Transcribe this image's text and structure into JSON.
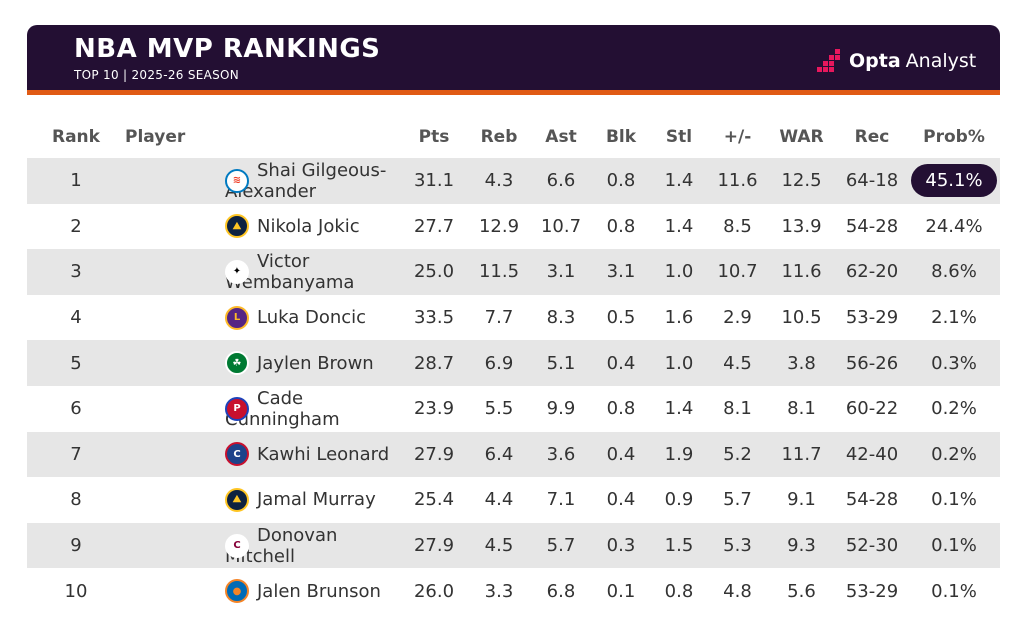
{
  "header": {
    "title": "NBA MVP RANKINGS",
    "subtitle": "TOP 10 | 2025-26 SEASON",
    "brand_bold": "Opta",
    "brand_light": "Analyst"
  },
  "columns": [
    "Rank",
    "Player",
    "Pts",
    "Reb",
    "Ast",
    "Blk",
    "Stl",
    "+/-",
    "WAR",
    "Rec",
    "Prob%"
  ],
  "rows": [
    {
      "rank": "1",
      "player": "Shai Gilgeous-Alexander",
      "team_icon": "thunder-logo-icon",
      "pts": "31.1",
      "reb": "4.3",
      "ast": "6.6",
      "blk": "0.8",
      "stl": "1.4",
      "pm": "11.6",
      "war": "12.5",
      "rec": "64-18",
      "prob": "45.1%"
    },
    {
      "rank": "2",
      "player": "Nikola Jokic",
      "team_icon": "nuggets-logo-icon",
      "pts": "27.7",
      "reb": "12.9",
      "ast": "10.7",
      "blk": "0.8",
      "stl": "1.4",
      "pm": "8.5",
      "war": "13.9",
      "rec": "54-28",
      "prob": "24.4%"
    },
    {
      "rank": "3",
      "player": "Victor Wembanyama",
      "team_icon": "spurs-logo-icon",
      "pts": "25.0",
      "reb": "11.5",
      "ast": "3.1",
      "blk": "3.1",
      "stl": "1.0",
      "pm": "10.7",
      "war": "11.6",
      "rec": "62-20",
      "prob": "8.6%"
    },
    {
      "rank": "4",
      "player": "Luka Doncic",
      "team_icon": "lakers-logo-icon",
      "pts": "33.5",
      "reb": "7.7",
      "ast": "8.3",
      "blk": "0.5",
      "stl": "1.6",
      "pm": "2.9",
      "war": "10.5",
      "rec": "53-29",
      "prob": "2.1%"
    },
    {
      "rank": "5",
      "player": "Jaylen Brown",
      "team_icon": "celtics-logo-icon",
      "pts": "28.7",
      "reb": "6.9",
      "ast": "5.1",
      "blk": "0.4",
      "stl": "1.0",
      "pm": "4.5",
      "war": "3.8",
      "rec": "56-26",
      "prob": "0.3%"
    },
    {
      "rank": "6",
      "player": "Cade Cunningham",
      "team_icon": "pistons-logo-icon",
      "pts": "23.9",
      "reb": "5.5",
      "ast": "9.9",
      "blk": "0.8",
      "stl": "1.4",
      "pm": "8.1",
      "war": "8.1",
      "rec": "60-22",
      "prob": "0.2%"
    },
    {
      "rank": "7",
      "player": "Kawhi Leonard",
      "team_icon": "clippers-logo-icon",
      "pts": "27.9",
      "reb": "6.4",
      "ast": "3.6",
      "blk": "0.4",
      "stl": "1.9",
      "pm": "5.2",
      "war": "11.7",
      "rec": "42-40",
      "prob": "0.2%"
    },
    {
      "rank": "8",
      "player": "Jamal Murray",
      "team_icon": "nuggets-logo-icon",
      "pts": "25.4",
      "reb": "4.4",
      "ast": "7.1",
      "blk": "0.4",
      "stl": "0.9",
      "pm": "5.7",
      "war": "9.1",
      "rec": "54-28",
      "prob": "0.1%"
    },
    {
      "rank": "9",
      "player": "Donovan Mitchell",
      "team_icon": "cavaliers-logo-icon",
      "pts": "27.9",
      "reb": "4.5",
      "ast": "5.7",
      "blk": "0.3",
      "stl": "1.5",
      "pm": "5.3",
      "war": "9.3",
      "rec": "52-30",
      "prob": "0.1%"
    },
    {
      "rank": "10",
      "player": "Jalen Brunson",
      "team_icon": "knicks-logo-icon",
      "pts": "26.0",
      "reb": "3.3",
      "ast": "6.8",
      "blk": "0.1",
      "stl": "0.8",
      "pm": "4.8",
      "war": "5.6",
      "rec": "53-29",
      "prob": "0.1%"
    }
  ],
  "colors": {
    "banner": "#230f33",
    "accent": "#e05a14",
    "brand_dots": "#e8175d",
    "stripe": "#e6e6e6"
  }
}
